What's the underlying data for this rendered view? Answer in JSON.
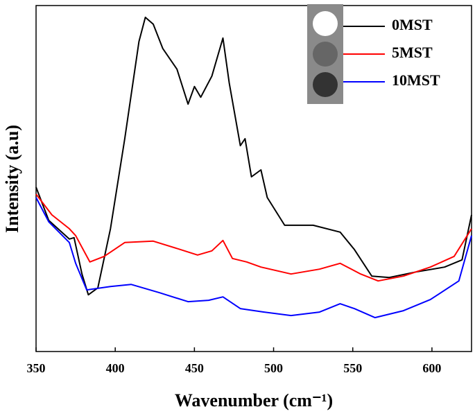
{
  "chart_data": {
    "type": "line",
    "xlabel": "Wavenumber (cm⁻¹)",
    "ylabel": "Intensity (a.u)",
    "xlim": [
      350,
      625
    ],
    "ylim": [
      0,
      100
    ],
    "xticks": [
      350,
      400,
      450,
      500,
      550,
      600
    ],
    "legend": "upper right",
    "series": [
      {
        "name": "0MST",
        "color": "#000000",
        "x": [
          350,
          358,
          371,
          374,
          379,
          383,
          389,
          397,
          406,
          415,
          419,
          424,
          430,
          439,
          446,
          450,
          454,
          461,
          468,
          472,
          479,
          482,
          486,
          492,
          496,
          507,
          525,
          542,
          551,
          562,
          573,
          590,
          608,
          619,
          625
        ],
        "values": [
          47.5,
          37.9,
          32.5,
          32.9,
          22.4,
          16.4,
          18.4,
          35.5,
          61.5,
          89.6,
          96.6,
          94.6,
          87.6,
          81.6,
          71.5,
          76.6,
          73.5,
          79.6,
          90.6,
          77.6,
          59.5,
          61.5,
          50.5,
          52.5,
          44.5,
          36.5,
          36.5,
          34.5,
          29.5,
          21.8,
          21.4,
          23.0,
          24.4,
          26.5,
          39.5
        ]
      },
      {
        "name": "5MST",
        "color": "#ff0000",
        "x": [
          350,
          360,
          371,
          375,
          384,
          393,
          406,
          424,
          441,
          452,
          461,
          468,
          474,
          483,
          492,
          511,
          529,
          542,
          555,
          566,
          582,
          599,
          614,
          625
        ],
        "values": [
          45.5,
          39.5,
          35.5,
          33.5,
          25.9,
          27.5,
          31.5,
          31.9,
          29.5,
          27.9,
          29.1,
          32.1,
          26.9,
          25.9,
          24.4,
          22.4,
          23.8,
          25.5,
          22.4,
          20.4,
          21.8,
          24.4,
          27.5,
          35.5
        ]
      },
      {
        "name": "10MST",
        "color": "#0000ff",
        "x": [
          350,
          358,
          371,
          375,
          382,
          397,
          410,
          428,
          446,
          459,
          468,
          479,
          494,
          511,
          529,
          542,
          551,
          564,
          582,
          599,
          617,
          625
        ],
        "values": [
          44.5,
          37.5,
          31.5,
          25.5,
          17.8,
          18.8,
          19.4,
          17.0,
          14.4,
          14.8,
          15.8,
          12.4,
          11.4,
          10.4,
          11.4,
          13.8,
          12.4,
          9.8,
          11.8,
          15.0,
          20.4,
          33.5
        ]
      }
    ]
  }
}
